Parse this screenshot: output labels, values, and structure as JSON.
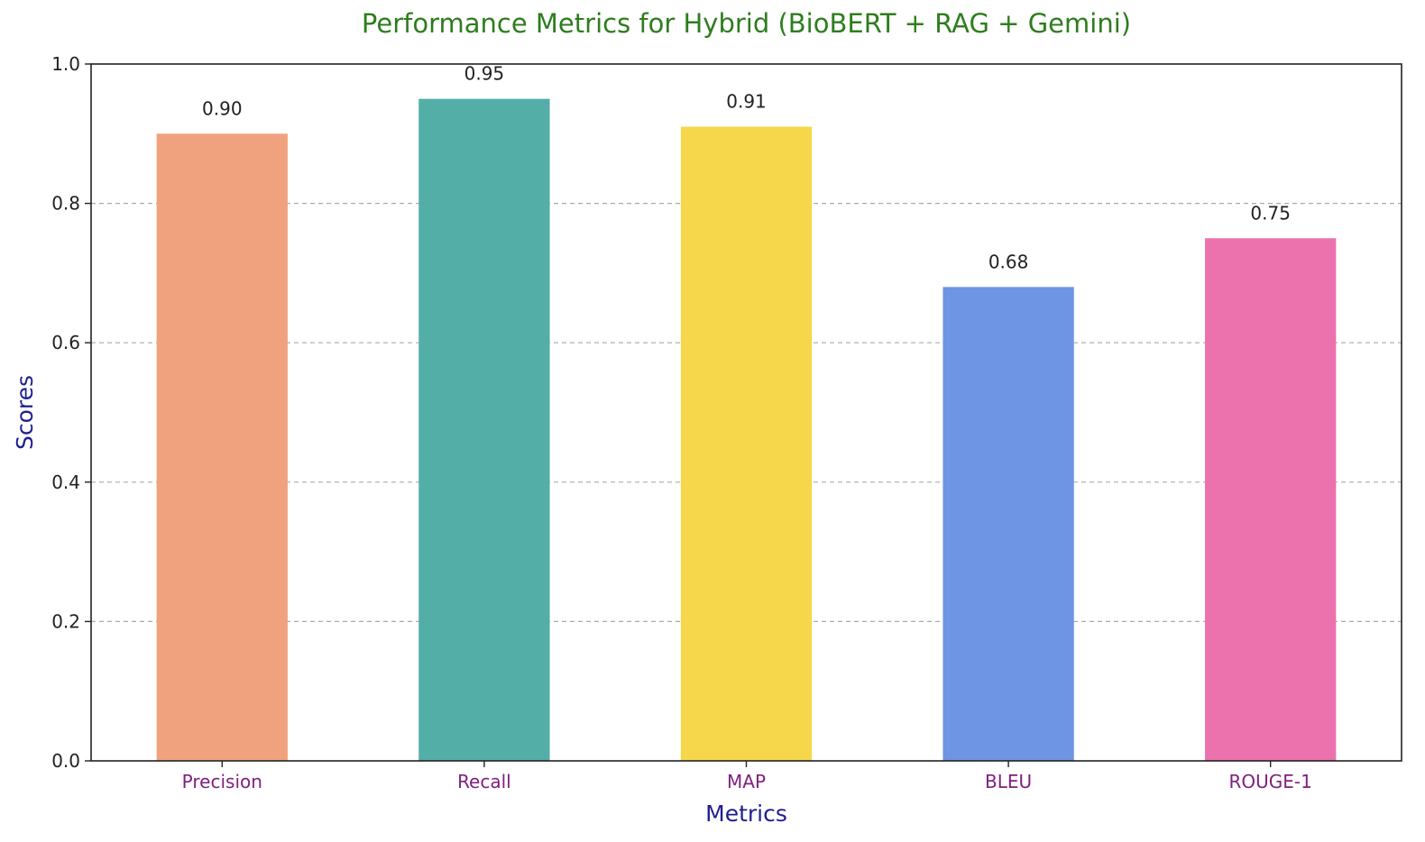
{
  "chart_data": {
    "type": "bar",
    "title": "Performance Metrics for Hybrid (BioBERT + RAG + Gemini)",
    "xlabel": "Metrics",
    "ylabel": "Scores",
    "categories": [
      "Precision",
      "Recall",
      "MAP",
      "BLEU",
      "ROUGE-1"
    ],
    "values": [
      0.9,
      0.95,
      0.91,
      0.68,
      0.75
    ],
    "data_labels": [
      "0.90",
      "0.95",
      "0.91",
      "0.68",
      "0.75"
    ],
    "bar_colors": [
      "#f0a27f",
      "#54aea8",
      "#f6d74b",
      "#6e94e4",
      "#ec72ae"
    ],
    "ylim": [
      0,
      1.0
    ],
    "yticks": [
      0.0,
      0.2,
      0.4,
      0.6,
      0.8,
      1.0
    ],
    "ytick_labels": [
      "0.0",
      "0.2",
      "0.4",
      "0.6",
      "0.8",
      "1.0"
    ],
    "grid": "horizontal dashed",
    "legend": "none",
    "colors": {
      "title": "#2e7d1e",
      "axis_label": "#1f1f8f",
      "category_label": "#80207f",
      "grid": "#aaaaaa"
    }
  }
}
